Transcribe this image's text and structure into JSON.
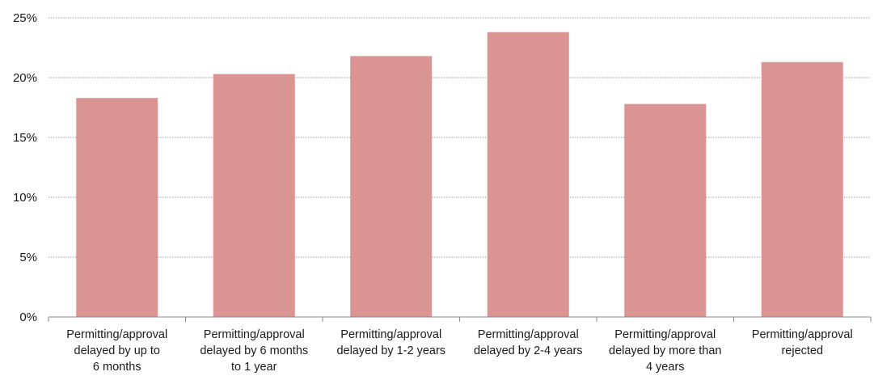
{
  "chart_data": {
    "type": "bar",
    "categories": [
      "Permitting/approval delayed by up to 6 months",
      "Permitting/approval delayed by 6 months to 1 year",
      "Permitting/approval delayed by 1-2 years",
      "Permitting/approval delayed by 2-4 years",
      "Permitting/approval delayed by more than 4 years",
      "Permitting/approval rejected"
    ],
    "category_label_lines": [
      [
        "Permitting/approval",
        "delayed by up to",
        "6 months"
      ],
      [
        "Permitting/approval",
        "delayed by 6 months",
        "to 1 year"
      ],
      [
        "Permitting/approval",
        "delayed by 1-2 years"
      ],
      [
        "Permitting/approval",
        "delayed by 2-4 years"
      ],
      [
        "Permitting/approval",
        "delayed by more than",
        "4 years"
      ],
      [
        "Permitting/approval",
        "rejected"
      ]
    ],
    "series": [
      {
        "values": [
          18.3,
          20.3,
          21.8,
          23.8,
          17.8,
          21.3
        ],
        "color": "#d99493"
      }
    ],
    "yticks": [
      0,
      5,
      10,
      15,
      20,
      25
    ],
    "ytick_labels": [
      "0%",
      "5%",
      "10%",
      "15%",
      "20%",
      "25%"
    ],
    "ylim": [
      0,
      25
    ],
    "title": "",
    "xlabel": "",
    "ylabel": "",
    "grid": true,
    "grid_style": "dotted horizontal",
    "legend": "none"
  }
}
